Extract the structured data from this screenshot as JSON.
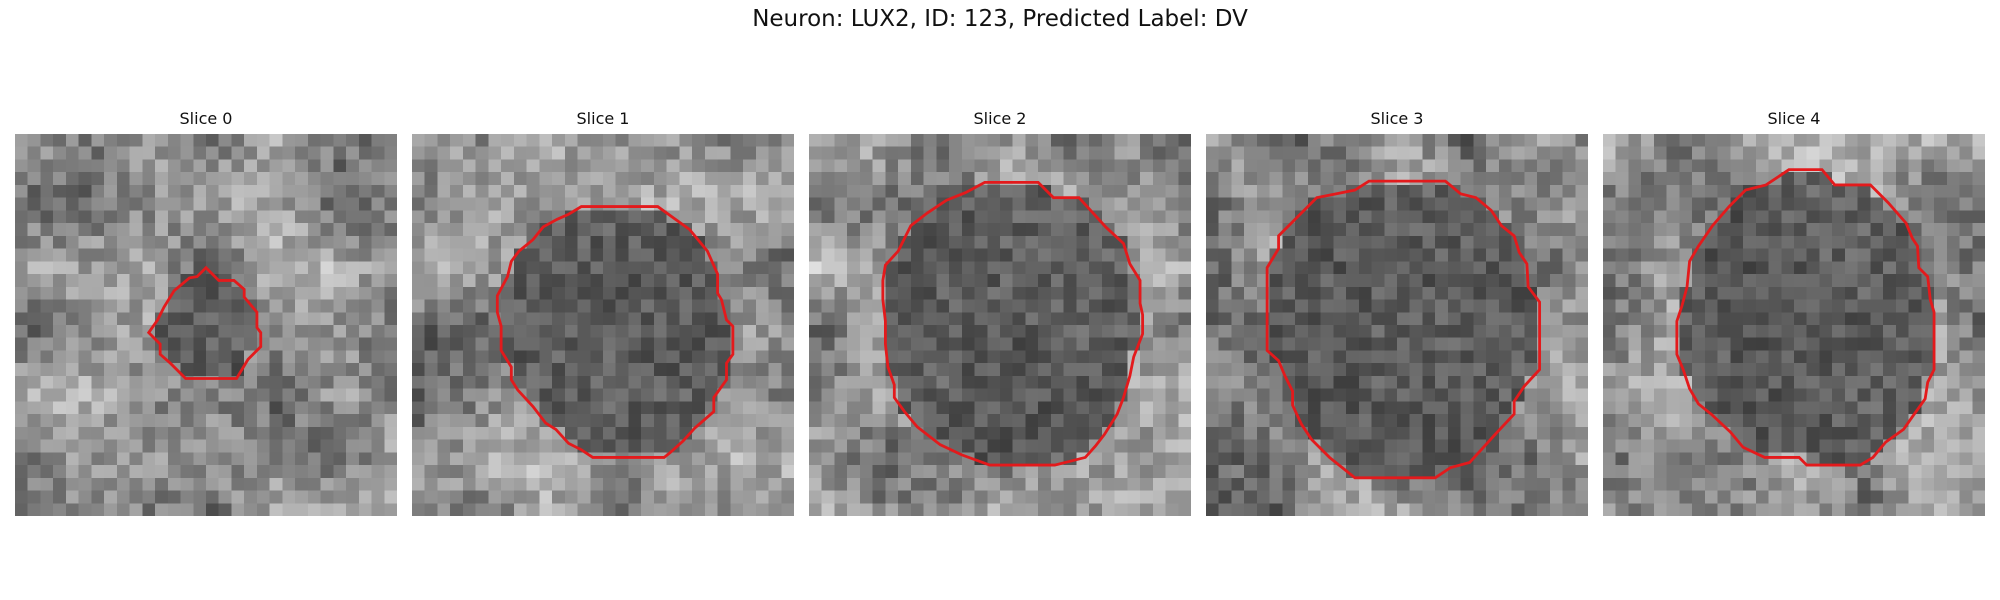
{
  "figure": {
    "title": "Neuron: LUX2, ID: 123, Predicted Label: DV",
    "contour_color": "#e31a1c",
    "colormap": "gray",
    "panels": [
      {
        "title": "Slice 0"
      },
      {
        "title": "Slice 1"
      },
      {
        "title": "Slice 2"
      },
      {
        "title": "Slice 3"
      },
      {
        "title": "Slice 4"
      }
    ]
  }
}
